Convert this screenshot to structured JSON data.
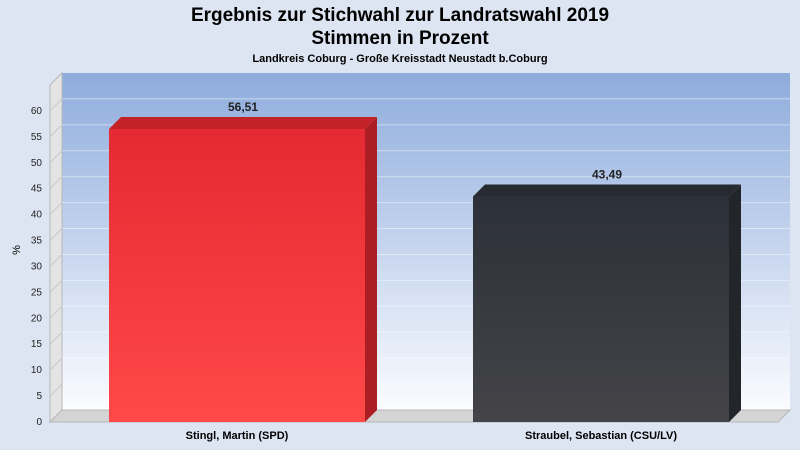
{
  "chart_data": {
    "type": "bar",
    "title_line1": "Ergebnis zur Stichwahl zur Landratswahl 2019",
    "title_line2": "Stimmen in Prozent",
    "subtitle": "Landkreis Coburg - Große Kreisstadt Neustadt b.Coburg",
    "ylabel": "%",
    "categories": [
      "Stingl, Martin (SPD)",
      "Straubel, Sebastian (CSU/LV)"
    ],
    "values": [
      56.51,
      43.49
    ],
    "value_labels": [
      "56,51",
      "43,49"
    ],
    "colors": [
      "#ee2a30",
      "#2f333b"
    ],
    "ylim": [
      0,
      65
    ],
    "yticks": [
      0,
      5,
      10,
      15,
      20,
      25,
      30,
      35,
      40,
      45,
      50,
      55,
      60
    ],
    "grid": true
  }
}
